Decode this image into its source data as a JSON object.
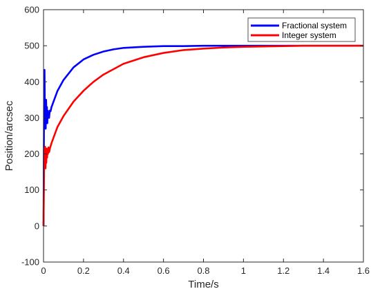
{
  "chart_data": {
    "type": "line",
    "title": "",
    "xlabel": "Time/s",
    "ylabel": "Position/arcsec",
    "xlim": [
      0,
      1.6
    ],
    "ylim": [
      -100,
      600
    ],
    "x_ticks": [
      "0",
      "0.2",
      "0.4",
      "0.6",
      "0.8",
      "1",
      "1.2",
      "1.4",
      "1.6"
    ],
    "y_ticks": [
      "-100",
      "0",
      "100",
      "200",
      "300",
      "400",
      "500",
      "600"
    ],
    "x_tick_values": [
      0,
      0.2,
      0.4,
      0.6,
      0.8,
      1.0,
      1.2,
      1.4,
      1.6
    ],
    "y_tick_values": [
      -100,
      0,
      100,
      200,
      300,
      400,
      500,
      600
    ],
    "grid": false,
    "legend_position": "top-right",
    "series": [
      {
        "name": "Fractional system",
        "color": "#0000ff",
        "x": [
          0,
          0.003,
          0.005,
          0.007,
          0.009,
          0.011,
          0.013,
          0.015,
          0.017,
          0.019,
          0.021,
          0.023,
          0.025,
          0.028,
          0.031,
          0.035,
          0.04,
          0.05,
          0.07,
          0.1,
          0.15,
          0.2,
          0.25,
          0.3,
          0.35,
          0.4,
          0.5,
          0.6,
          0.7,
          0.8,
          0.9,
          1.0,
          1.1,
          1.2,
          1.3,
          1.4,
          1.5,
          1.6
        ],
        "y": [
          0,
          380,
          433,
          290,
          330,
          270,
          350,
          300,
          330,
          285,
          320,
          300,
          315,
          300,
          320,
          318,
          330,
          345,
          375,
          405,
          440,
          462,
          475,
          484,
          490,
          494,
          497,
          499,
          499,
          500,
          500,
          500,
          500,
          500,
          500,
          500,
          500,
          500
        ]
      },
      {
        "name": "Integer system",
        "color": "#ff0000",
        "x": [
          0,
          0.004,
          0.006,
          0.008,
          0.01,
          0.012,
          0.014,
          0.016,
          0.018,
          0.02,
          0.022,
          0.025,
          0.028,
          0.032,
          0.04,
          0.05,
          0.07,
          0.1,
          0.15,
          0.2,
          0.25,
          0.3,
          0.4,
          0.5,
          0.6,
          0.7,
          0.8,
          0.9,
          1.0,
          1.1,
          1.2,
          1.3,
          1.4,
          1.5,
          1.6
        ],
        "y": [
          0,
          215,
          170,
          220,
          160,
          205,
          175,
          215,
          190,
          210,
          200,
          218,
          205,
          215,
          230,
          245,
          275,
          305,
          345,
          375,
          400,
          420,
          450,
          468,
          480,
          488,
          492,
          495,
          497,
          498,
          499,
          500,
          500,
          500,
          500
        ]
      }
    ]
  }
}
